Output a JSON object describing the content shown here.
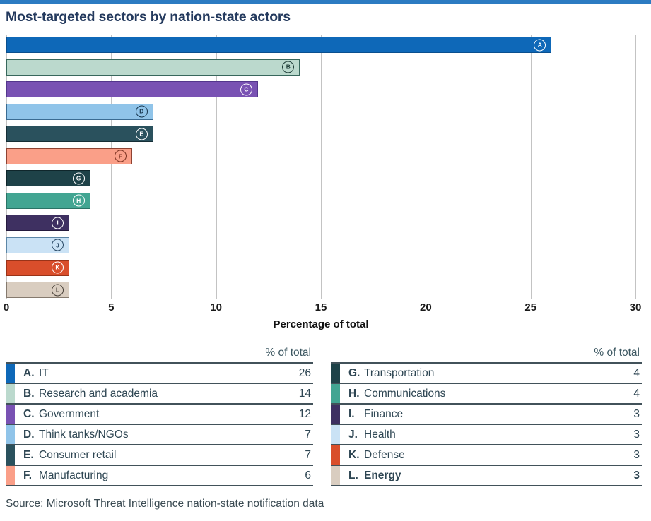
{
  "page": {
    "background": "#FFFFFF",
    "top_accent_color": "#2C7BC2",
    "title_color": "#243A5E"
  },
  "title": "Most-targeted sectors by nation-state actors",
  "chart_data": {
    "type": "bar",
    "orientation": "horizontal",
    "title": "Most-targeted sectors by nation-state actors",
    "xlabel": "Percentage of total",
    "xlim": [
      0,
      30
    ],
    "xticks": [
      0,
      5,
      10,
      15,
      20,
      25,
      30
    ],
    "grid": true,
    "gridline_color": "#C3C3C3",
    "categories": [
      "IT",
      "Research and academia",
      "Government",
      "Think tanks/NGOs",
      "Consumer retail",
      "Manufacturing",
      "Transportation",
      "Communications",
      "Finance",
      "Health",
      "Defense",
      "Energy"
    ],
    "values": [
      26,
      14,
      12,
      7,
      7,
      6,
      4,
      4,
      3,
      3,
      3,
      3
    ],
    "bars": [
      {
        "letter": "A",
        "label": "IT",
        "value": 26,
        "fill": "#0E68B8",
        "border": "#0A4F8E",
        "marker": "#FFFFFF",
        "bold": false
      },
      {
        "letter": "B",
        "label": "Research and academia",
        "value": 14,
        "fill": "#BBD9CD",
        "border": "#37675C",
        "marker": "#1C3B36",
        "bold": false
      },
      {
        "letter": "C",
        "label": "Government",
        "value": 12,
        "fill": "#7952B3",
        "border": "#53378C",
        "marker": "#FFFFFF",
        "bold": false
      },
      {
        "letter": "D",
        "label": "Think tanks/NGOs",
        "value": 7,
        "fill": "#90C4E9",
        "border": "#3A6B92",
        "marker": "#17364E",
        "bold": false
      },
      {
        "letter": "E",
        "label": "Consumer retail",
        "value": 7,
        "fill": "#2A515D",
        "border": "#152E36",
        "marker": "#FFFFFF",
        "bold": false
      },
      {
        "letter": "F",
        "label": "Manufacturing",
        "value": 6,
        "fill": "#FA9F88",
        "border": "#8E4232",
        "marker": "#7D3322",
        "bold": false
      },
      {
        "letter": "G",
        "label": "Transportation",
        "value": 4,
        "fill": "#1E4248",
        "border": "#0F262B",
        "marker": "#FFFFFF",
        "bold": false
      },
      {
        "letter": "H",
        "label": "Communications",
        "value": 4,
        "fill": "#42A592",
        "border": "#2A7366",
        "marker": "#FFFFFF",
        "bold": false
      },
      {
        "letter": "I",
        "label": "Finance",
        "value": 3,
        "fill": "#3E3061",
        "border": "#241A3D",
        "marker": "#FFFFFF",
        "bold": false
      },
      {
        "letter": "J",
        "label": "Health",
        "value": 3,
        "fill": "#CAE2F5",
        "border": "#5C86A6",
        "marker": "#2A4A66",
        "bold": false
      },
      {
        "letter": "K",
        "label": "Defense",
        "value": 3,
        "fill": "#D94E2B",
        "border": "#9A3318",
        "marker": "#FFFFFF",
        "bold": false
      },
      {
        "letter": "L",
        "label": "Energy",
        "value": 3,
        "fill": "#D9CDC0",
        "border": "#857A6E",
        "marker": "#474038",
        "bold": true
      }
    ]
  },
  "legend": {
    "value_header": "% of total",
    "left_letters": [
      "A",
      "B",
      "C",
      "D",
      "E",
      "F"
    ],
    "right_letters": [
      "G",
      "H",
      "I",
      "J",
      "K",
      "L"
    ],
    "divider_color": "#42525A",
    "text_color": "#2E4653"
  },
  "source": "Source: Microsoft Threat Intelligence nation-state notification data"
}
